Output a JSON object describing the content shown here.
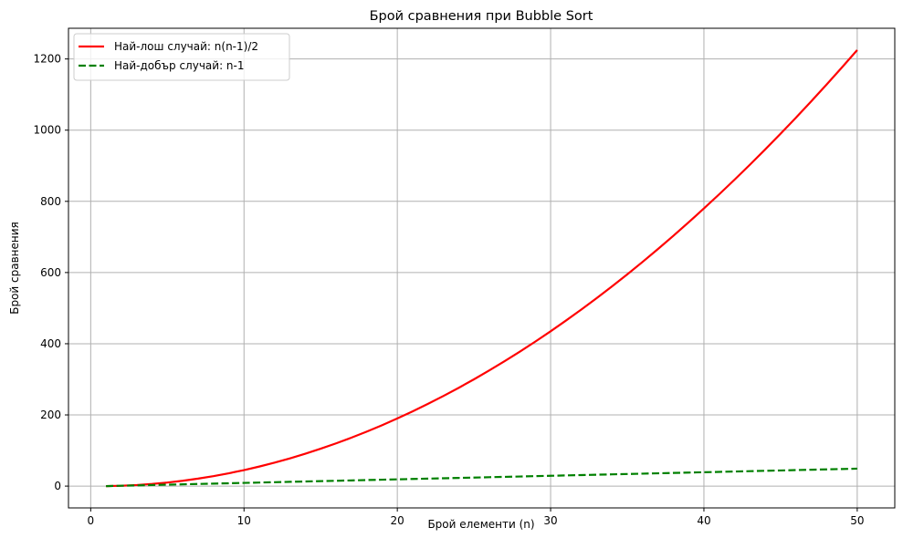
{
  "chart_data": {
    "type": "line",
    "title": "Брой сравнения при Bubble Sort",
    "xlabel": "Брой елементи (n)",
    "ylabel": "Брой сравнения",
    "xlim": [
      -1.45,
      52.45
    ],
    "ylim": [
      -61.25,
      1286.25
    ],
    "xticks": [
      0,
      10,
      20,
      30,
      40,
      50
    ],
    "yticks": [
      0,
      200,
      400,
      600,
      800,
      1000,
      1200
    ],
    "grid": true,
    "legend": "top-left",
    "x": [
      1,
      2,
      3,
      4,
      5,
      6,
      7,
      8,
      9,
      10,
      11,
      12,
      13,
      14,
      15,
      16,
      17,
      18,
      19,
      20,
      21,
      22,
      23,
      24,
      25,
      26,
      27,
      28,
      29,
      30,
      31,
      32,
      33,
      34,
      35,
      36,
      37,
      38,
      39,
      40,
      41,
      42,
      43,
      44,
      45,
      46,
      47,
      48,
      49,
      50
    ],
    "series": [
      {
        "name": "Най-лош случай: n(n-1)/2",
        "color": "#ff0000",
        "style": "solid",
        "values": [
          0,
          1,
          3,
          6,
          10,
          15,
          21,
          28,
          36,
          45,
          55,
          66,
          78,
          91,
          105,
          120,
          136,
          153,
          171,
          190,
          210,
          231,
          253,
          276,
          300,
          325,
          351,
          378,
          406,
          435,
          465,
          496,
          528,
          561,
          595,
          630,
          666,
          703,
          741,
          780,
          820,
          861,
          903,
          946,
          990,
          1035,
          1081,
          1128,
          1176,
          1225
        ]
      },
      {
        "name": "Най-добър случай: n-1",
        "color": "#008000",
        "style": "dashed",
        "values": [
          0,
          1,
          2,
          3,
          4,
          5,
          6,
          7,
          8,
          9,
          10,
          11,
          12,
          13,
          14,
          15,
          16,
          17,
          18,
          19,
          20,
          21,
          22,
          23,
          24,
          25,
          26,
          27,
          28,
          29,
          30,
          31,
          32,
          33,
          34,
          35,
          36,
          37,
          38,
          39,
          40,
          41,
          42,
          43,
          44,
          45,
          46,
          47,
          48,
          49
        ]
      }
    ]
  }
}
